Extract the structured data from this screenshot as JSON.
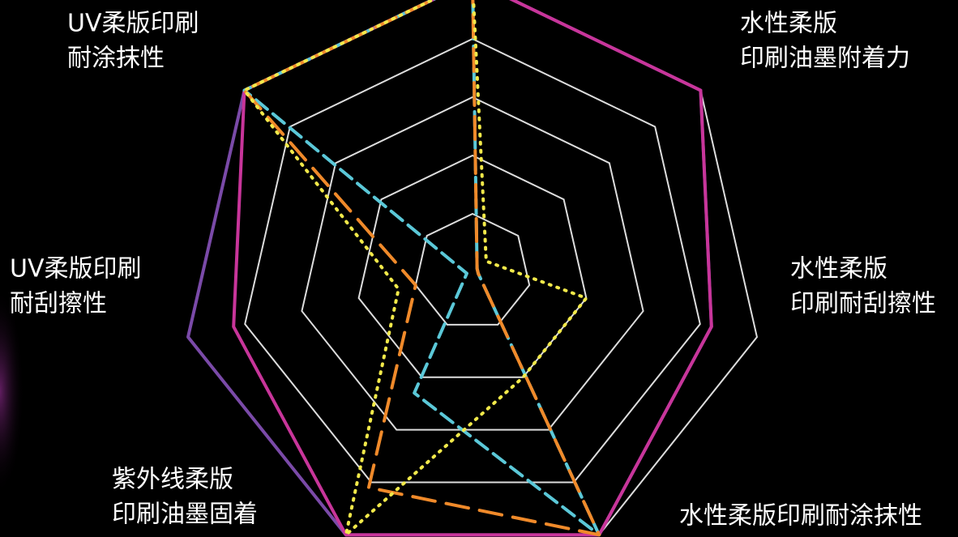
{
  "chart_data": {
    "type": "radar",
    "categories": [
      null,
      [
        "水性柔版",
        "印刷油墨附着力"
      ],
      [
        "水性柔版",
        "印刷耐刮擦性"
      ],
      [
        "水性柔版印刷耐涂抹性"
      ],
      [
        "紫外线柔版",
        "印刷油墨固着"
      ],
      [
        "UV柔版印刷",
        "耐刮擦性"
      ],
      [
        "UV柔版印刷",
        "耐涂抹性"
      ]
    ],
    "rlim": [
      0,
      5
    ],
    "rticks": [
      1,
      2,
      3,
      4,
      5
    ],
    "grid": true,
    "series": [
      {
        "color": "#7a4aa8",
        "style": "solid",
        "values": [
          5,
          5,
          4.2,
          5,
          5,
          5,
          5
        ]
      },
      {
        "color": "#c8359a",
        "style": "solid",
        "values": [
          5,
          5,
          4.2,
          5,
          5,
          4.2,
          5
        ]
      },
      {
        "color": "#5bc8d8",
        "style": "dashed",
        "values": [
          5,
          0.1,
          0.1,
          5,
          2.3,
          0.1,
          5
        ]
      },
      {
        "color": "#f08a2a",
        "style": "longdash",
        "values": [
          5,
          0.1,
          0.1,
          5,
          4.1,
          1,
          5
        ]
      },
      {
        "color": "#f2e94a",
        "style": "dotted",
        "values": [
          5,
          0.3,
          2,
          2,
          5,
          1.3,
          5
        ]
      }
    ]
  }
}
